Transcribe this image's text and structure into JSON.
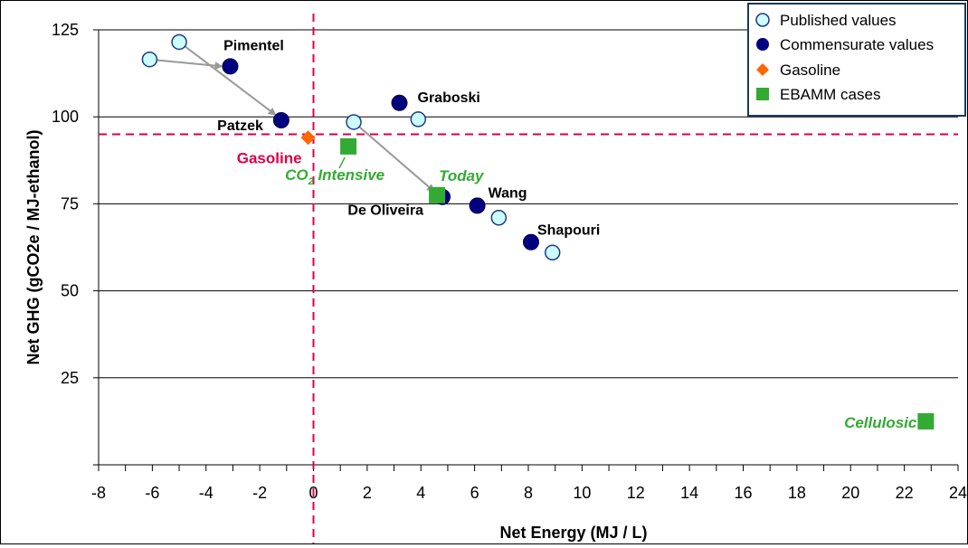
{
  "chart_data": {
    "type": "scatter",
    "xlabel": "Net Energy (MJ / L)",
    "ylabel": "Net GHG (gCO2e / MJ-ethanol)",
    "xlim": [
      -8,
      24
    ],
    "ylim": [
      0,
      125
    ],
    "x_ticks": [
      "-8",
      "-6",
      "-4",
      "-2",
      "0",
      "2",
      "4",
      "6",
      "8",
      "10",
      "12",
      "14",
      "16",
      "18",
      "20",
      "22",
      "24"
    ],
    "y_ticks": [
      "25",
      "50",
      "75",
      "100",
      "125"
    ],
    "gridlines": "horizontal",
    "legend_position": "top-right",
    "colors": {
      "published": "#ccffff",
      "commensurate": "#000080",
      "gasoline": "#ff6600",
      "ebamm": "#33aa33",
      "reference_line": "#dd0044",
      "arrow": "#999999"
    },
    "series": [
      {
        "name": "Published values",
        "points": [
          {
            "x": -6.1,
            "y": 116.5
          },
          {
            "x": -5.0,
            "y": 121.5
          },
          {
            "x": 1.5,
            "y": 98.5
          },
          {
            "x": 3.9,
            "y": 99.3
          },
          {
            "x": 6.9,
            "y": 71.0
          },
          {
            "x": 8.9,
            "y": 61.0
          }
        ]
      },
      {
        "name": "Commensurate values",
        "points": [
          {
            "x": -3.1,
            "y": 114.5,
            "label": "Pimentel"
          },
          {
            "x": -1.2,
            "y": 99.0,
            "label": "Patzek"
          },
          {
            "x": 3.2,
            "y": 104.0,
            "label": "Graboski"
          },
          {
            "x": 4.8,
            "y": 77.0,
            "label": "De Oliveira"
          },
          {
            "x": 6.1,
            "y": 74.5,
            "label": "Wang"
          },
          {
            "x": 8.1,
            "y": 64.0,
            "label": "Shapouri"
          }
        ]
      },
      {
        "name": "Gasoline",
        "points": [
          {
            "x": -0.2,
            "y": 94.0,
            "label": "Gasoline"
          }
        ]
      },
      {
        "name": "EBAMM cases",
        "points": [
          {
            "x": 1.3,
            "y": 91.5,
            "label_main": "CO",
            "label_sub": "2",
            "label_rest": " Intensive"
          },
          {
            "x": 4.6,
            "y": 77.5,
            "label": "Today"
          },
          {
            "x": 22.8,
            "y": 12.5,
            "label": "Cellulosic"
          }
        ]
      }
    ],
    "reference_lines": {
      "x": 0,
      "y": 95
    },
    "arrows": [
      {
        "from": [
          -6.1,
          116.5
        ],
        "to": [
          -3.4,
          114.5
        ]
      },
      {
        "from": [
          -5.0,
          121.5
        ],
        "to": [
          -1.4,
          100.5
        ]
      },
      {
        "from": [
          1.5,
          98.5
        ],
        "to": [
          4.5,
          78.5
        ]
      }
    ]
  }
}
